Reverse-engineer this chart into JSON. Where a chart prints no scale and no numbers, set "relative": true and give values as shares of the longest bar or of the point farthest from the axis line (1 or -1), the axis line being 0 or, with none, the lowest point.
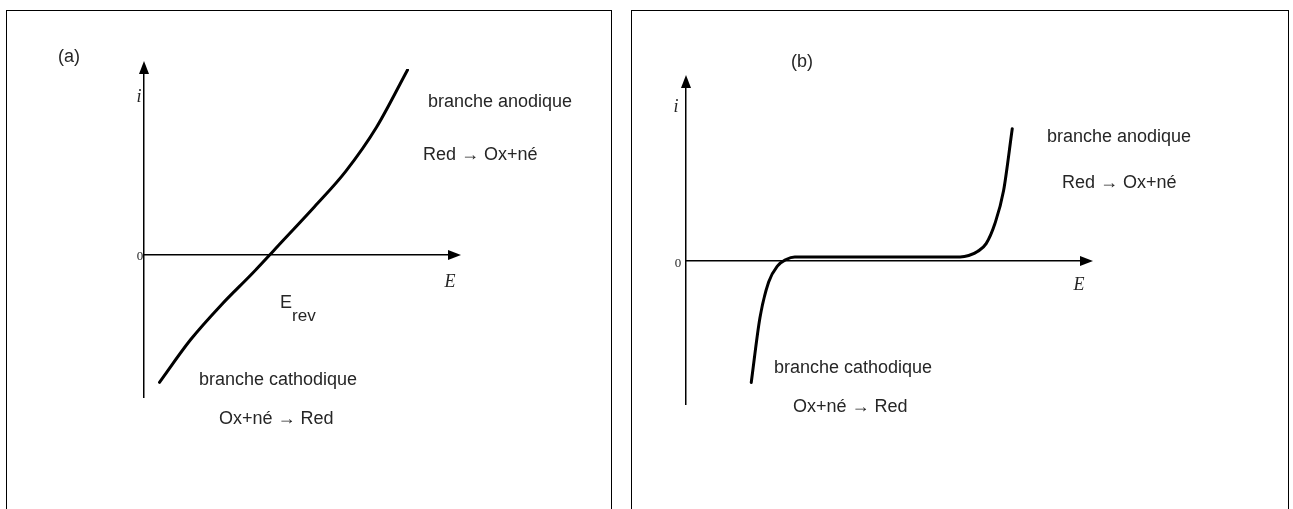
{
  "chart_data": [
    {
      "type": "line",
      "title": "(a)",
      "xlabel": "E",
      "ylabel": "i",
      "relative": true,
      "marker": "none",
      "color": "#000000",
      "categories": [
        null,
        null,
        null,
        null,
        null,
        null,
        null,
        null,
        null,
        null
      ],
      "values": [
        -0.69,
        -0.46,
        -0.27,
        -0.1,
        0.08,
        0.26,
        0.45,
        0.69,
        1,
        null
      ],
      "annotations": [
        "0",
        "E$_{rev}$",
        "branche anodique",
        "Red → Ox+né",
        "branche cathodique",
        "Ox+né → Red"
      ]
    },
    {
      "type": "line",
      "title": "(b)",
      "xlabel": "E",
      "ylabel": "i",
      "relative": true,
      "marker": "none",
      "color": "#000000",
      "categories": [
        null,
        null,
        null,
        null,
        null,
        null,
        null,
        null,
        null,
        null,
        null,
        null,
        null,
        null,
        null,
        null,
        null,
        null,
        null,
        null,
        null,
        null,
        null,
        null,
        null,
        null,
        null,
        null,
        null,
        null,
        null,
        null,
        null,
        null,
        null,
        null,
        null,
        null,
        null,
        null,
        null,
        null,
        null,
        null,
        null,
        null
      ],
      "values": [
        null,
        null,
        null,
        null,
        null,
        null,
        null,
        -0.92,
        -0.43,
        -0.16,
        -0.04,
        0.01,
        0.03,
        0.03,
        0.03,
        0.03,
        0.03,
        0.03,
        0.03,
        0.03,
        0.03,
        0.03,
        0.03,
        0.03,
        0.03,
        0.03,
        0.03,
        0.03,
        0.03,
        0.03,
        0.03,
        0.03,
        0.04,
        0.07,
        0.13,
        0.28,
        0.53,
        1,
        null,
        null,
        null,
        null,
        null,
        null,
        null,
        null
      ],
      "annotations": [
        "0",
        "branche anodique",
        "Red → Ox+né",
        "branche cathodique",
        "Ox+né → Red"
      ]
    }
  ]
}
